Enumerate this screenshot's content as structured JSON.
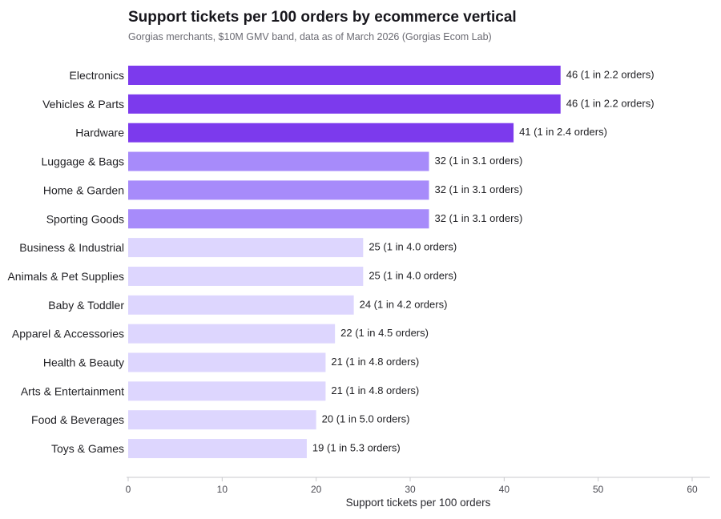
{
  "chart_data": {
    "type": "bar",
    "orientation": "horizontal",
    "title": "Support tickets per 100 orders by ecommerce vertical",
    "subtitle": "Gorgias merchants, $10M GMV band, data as of March 2026 (Gorgias Ecom Lab)",
    "xlabel": "Support tickets per 100 orders",
    "ylabel": "",
    "xlim": [
      0,
      60
    ],
    "xticks": [
      0,
      10,
      20,
      30,
      40,
      50,
      60
    ],
    "grid": false,
    "categories": [
      "Electronics",
      "Vehicles & Parts",
      "Hardware",
      "Luggage & Bags",
      "Home & Garden",
      "Sporting Goods",
      "Business & Industrial",
      "Animals & Pet Supplies",
      "Baby & Toddler",
      "Apparel & Accessories",
      "Health & Beauty",
      "Arts & Entertainment",
      "Food & Beverages",
      "Toys & Games"
    ],
    "values": [
      46,
      46,
      41,
      32,
      32,
      32,
      25,
      25,
      24,
      22,
      21,
      21,
      20,
      19
    ],
    "data_labels": [
      "46  (1 in 2.2 orders)",
      "46  (1 in 2.2 orders)",
      "41  (1 in 2.4 orders)",
      "32  (1 in 3.1 orders)",
      "32  (1 in 3.1 orders)",
      "32  (1 in 3.1 orders)",
      "25  (1 in 4.0 orders)",
      "25  (1 in 4.0 orders)",
      "24  (1 in 4.2 orders)",
      "22  (1 in 4.5 orders)",
      "21  (1 in 4.8 orders)",
      "21  (1 in 4.8 orders)",
      "20  (1 in 5.0 orders)",
      "19  (1 in 5.3 orders)"
    ],
    "colors": [
      "#7c3aed",
      "#7c3aed",
      "#7c3aed",
      "#a78bfa",
      "#a78bfa",
      "#a78bfa",
      "#ddd6fe",
      "#ddd6fe",
      "#ddd6fe",
      "#ddd6fe",
      "#ddd6fe",
      "#ddd6fe",
      "#ddd6fe",
      "#ddd6fe"
    ],
    "axis_color": "#c8c8cc"
  }
}
